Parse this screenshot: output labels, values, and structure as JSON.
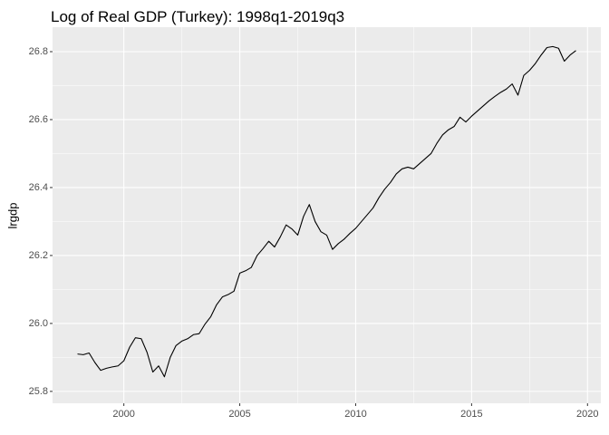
{
  "chart_data": {
    "type": "line",
    "title": "Log of Real GDP (Turkey): 1998q1-2019q3",
    "y_label": "lrgdp",
    "x": [
      1998,
      1998.25,
      1998.5,
      1998.75,
      1999,
      1999.25,
      1999.5,
      1999.75,
      2000,
      2000.25,
      2000.5,
      2000.75,
      2001,
      2001.25,
      2001.5,
      2001.75,
      2002,
      2002.25,
      2002.5,
      2002.75,
      2003,
      2003.25,
      2003.5,
      2003.75,
      2004,
      2004.25,
      2004.5,
      2004.75,
      2005,
      2005.25,
      2005.5,
      2005.75,
      2006,
      2006.25,
      2006.5,
      2006.75,
      2007,
      2007.25,
      2007.5,
      2007.75,
      2008,
      2008.25,
      2008.5,
      2008.75,
      2009,
      2009.25,
      2009.5,
      2009.75,
      2010,
      2010.25,
      2010.5,
      2010.75,
      2011,
      2011.25,
      2011.5,
      2011.75,
      2012,
      2012.25,
      2012.5,
      2012.75,
      2013,
      2013.25,
      2013.5,
      2013.75,
      2014,
      2014.25,
      2014.5,
      2014.75,
      2015,
      2015.25,
      2015.5,
      2015.75,
      2016,
      2016.25,
      2016.5,
      2016.75,
      2017,
      2017.25,
      2017.5,
      2017.75,
      2018,
      2018.25,
      2018.5,
      2018.75,
      2019,
      2019.25,
      2019.5
    ],
    "values": [
      25.91,
      25.908,
      25.913,
      25.885,
      25.862,
      25.868,
      25.872,
      25.875,
      25.89,
      25.93,
      25.958,
      25.955,
      25.915,
      25.857,
      25.875,
      25.843,
      25.9,
      25.935,
      25.948,
      25.955,
      25.967,
      25.97,
      25.998,
      26.02,
      26.055,
      26.078,
      26.085,
      26.095,
      26.148,
      26.155,
      26.165,
      26.2,
      26.22,
      26.242,
      26.225,
      26.255,
      26.29,
      26.278,
      26.26,
      26.315,
      26.35,
      26.3,
      26.27,
      26.26,
      26.218,
      26.235,
      26.248,
      26.265,
      26.28,
      26.3,
      26.32,
      26.34,
      26.37,
      26.395,
      26.415,
      26.44,
      26.455,
      26.46,
      26.455,
      26.47,
      26.485,
      26.5,
      26.53,
      26.555,
      26.57,
      26.58,
      26.607,
      26.593,
      26.61,
      26.625,
      26.64,
      26.655,
      26.668,
      26.68,
      26.69,
      26.705,
      26.672,
      26.73,
      26.745,
      26.765,
      26.79,
      26.812,
      26.815,
      26.81,
      26.772,
      26.79,
      26.803
    ],
    "color": "#000000",
    "xlim": [
      1996.925,
      2020.575
    ],
    "xticks": [
      2000,
      2005,
      2010,
      2015,
      2020
    ],
    "ylim": [
      25.765,
      26.872
    ],
    "yticks": [
      25.8,
      {
        "value": 26,
        "label": "26.0"
      },
      26.2,
      26.4,
      26.6,
      26.8
    ],
    "grid": true
  }
}
